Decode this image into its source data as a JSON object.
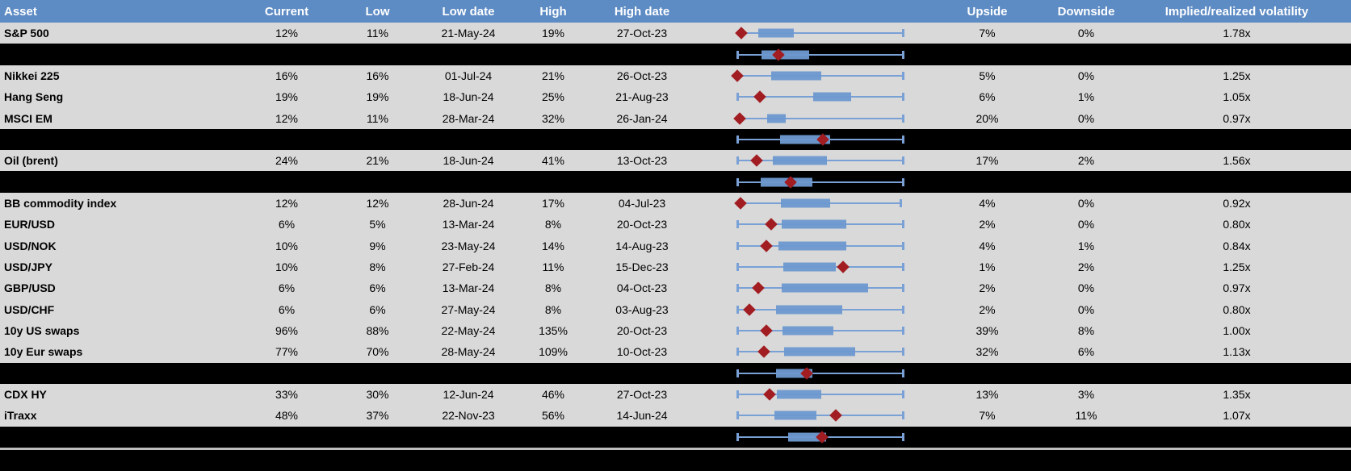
{
  "header": {
    "columns": [
      "Asset",
      "Current",
      "Low",
      "Low date",
      "High",
      "High date",
      "",
      "Upside",
      "Downside",
      "Implied/realized volatility"
    ]
  },
  "colors": {
    "header_bg": "#5d8bc4",
    "header_text": "#ffffff",
    "row_bg": "#d9d9d9",
    "summary_row_bg": "#000000",
    "box_fill": "#6d99cf",
    "whisker": "#79a1d6",
    "marker": "#a11d22",
    "divider": "#bfbfbf",
    "text": "#000000"
  },
  "chart_data": {
    "type": "table",
    "embedded_chart_type": "boxplot-with-marker",
    "boxplot_axis": {
      "min": 0,
      "max": 1,
      "units": "fraction of plot width (no axis labels shown)"
    },
    "rows": [
      {
        "type": "data",
        "asset": "S&P 500",
        "current": "12%",
        "low": "11%",
        "low_date": "21-May-24",
        "high": "19%",
        "high_date": "27-Oct-23",
        "upside": "7%",
        "downside": "0%",
        "implied_realized": "1.78x",
        "box": {
          "lo": 0.024,
          "q1": 0.127,
          "q3": 0.341,
          "hi": 1,
          "marker": 0.024,
          "left_cap": false
        }
      },
      {
        "type": "summary",
        "box": {
          "lo": 0,
          "q1": 0.146,
          "q3": 0.434,
          "hi": 1,
          "marker": 0.25,
          "left_cap": true
        }
      },
      {
        "type": "data",
        "asset": "Nikkei 225",
        "current": "16%",
        "low": "16%",
        "low_date": "01-Jul-24",
        "high": "21%",
        "high_date": "26-Oct-23",
        "upside": "5%",
        "downside": "0%",
        "implied_realized": "1.25x",
        "box": {
          "lo": 0,
          "q1": 0.205,
          "q3": 0.507,
          "hi": 1,
          "marker": 0,
          "left_cap": false
        }
      },
      {
        "type": "data",
        "asset": "Hang Seng",
        "current": "19%",
        "low": "19%",
        "low_date": "18-Jun-24",
        "high": "25%",
        "high_date": "21-Aug-23",
        "upside": "6%",
        "downside": "1%",
        "implied_realized": "1.05x",
        "box": {
          "lo": 0,
          "q1": 0.459,
          "q3": 0.688,
          "hi": 1,
          "marker": 0.137,
          "left_cap": true
        }
      },
      {
        "type": "data",
        "asset": "MSCI EM",
        "current": "12%",
        "low": "11%",
        "low_date": "28-Mar-24",
        "high": "32%",
        "high_date": "26-Jan-24",
        "upside": "20%",
        "downside": "0%",
        "implied_realized": "0.97x",
        "box": {
          "lo": 0.015,
          "q1": 0.18,
          "q3": 0.293,
          "hi": 1,
          "marker": 0.015,
          "left_cap": false
        }
      },
      {
        "type": "summary",
        "box": {
          "lo": 0,
          "q1": 0.259,
          "q3": 0.561,
          "hi": 1,
          "marker": 0.517,
          "left_cap": true
        }
      },
      {
        "type": "data",
        "asset": "Oil (brent)",
        "current": "24%",
        "low": "21%",
        "low_date": "18-Jun-24",
        "high": "41%",
        "high_date": "13-Oct-23",
        "upside": "17%",
        "downside": "2%",
        "implied_realized": "1.56x",
        "box": {
          "lo": 0,
          "q1": 0.215,
          "q3": 0.541,
          "hi": 1,
          "marker": 0.117,
          "left_cap": true
        }
      },
      {
        "type": "summary",
        "box": {
          "lo": 0,
          "q1": 0.141,
          "q3": 0.454,
          "hi": 1,
          "marker": 0.322,
          "left_cap": true
        }
      },
      {
        "type": "data",
        "asset": "BB commodity index",
        "current": "12%",
        "low": "12%",
        "low_date": "28-Jun-24",
        "high": "17%",
        "high_date": "04-Jul-23",
        "upside": "4%",
        "downside": "0%",
        "implied_realized": "0.92x",
        "box": {
          "lo": 0.02,
          "q1": 0.263,
          "q3": 0.561,
          "hi": 0.99,
          "marker": 0.02,
          "left_cap": false
        }
      },
      {
        "type": "data",
        "asset": "EUR/USD",
        "current": "6%",
        "low": "5%",
        "low_date": "13-Mar-24",
        "high": "8%",
        "high_date": "20-Oct-23",
        "upside": "2%",
        "downside": "0%",
        "implied_realized": "0.80x",
        "box": {
          "lo": 0,
          "q1": 0.268,
          "q3": 0.659,
          "hi": 1,
          "marker": 0.205,
          "left_cap": true
        }
      },
      {
        "type": "data",
        "asset": "USD/NOK",
        "current": "10%",
        "low": "9%",
        "low_date": "23-May-24",
        "high": "14%",
        "high_date": "14-Aug-23",
        "upside": "4%",
        "downside": "1%",
        "implied_realized": "0.84x",
        "box": {
          "lo": 0,
          "q1": 0.249,
          "q3": 0.659,
          "hi": 1,
          "marker": 0.176,
          "left_cap": true
        }
      },
      {
        "type": "data",
        "asset": "USD/JPY",
        "current": "10%",
        "low": "8%",
        "low_date": "27-Feb-24",
        "high": "11%",
        "high_date": "15-Dec-23",
        "upside": "1%",
        "downside": "2%",
        "implied_realized": "1.25x",
        "box": {
          "lo": 0,
          "q1": 0.278,
          "q3": 0.595,
          "hi": 1,
          "marker": 0.639,
          "left_cap": true
        }
      },
      {
        "type": "data",
        "asset": "GBP/USD",
        "current": "6%",
        "low": "6%",
        "low_date": "13-Mar-24",
        "high": "8%",
        "high_date": "04-Oct-23",
        "upside": "2%",
        "downside": "0%",
        "implied_realized": "0.97x",
        "box": {
          "lo": 0,
          "q1": 0.268,
          "q3": 0.79,
          "hi": 1,
          "marker": 0.127,
          "left_cap": true
        }
      },
      {
        "type": "data",
        "asset": "USD/CHF",
        "current": "6%",
        "low": "6%",
        "low_date": "27-May-24",
        "high": "8%",
        "high_date": "03-Aug-23",
        "upside": "2%",
        "downside": "0%",
        "implied_realized": "0.80x",
        "box": {
          "lo": 0,
          "q1": 0.234,
          "q3": 0.634,
          "hi": 1,
          "marker": 0.073,
          "left_cap": true
        }
      },
      {
        "type": "data",
        "asset": "10y US swaps",
        "current": "96%",
        "low": "88%",
        "low_date": "22-May-24",
        "high": "135%",
        "high_date": "20-Oct-23",
        "upside": "39%",
        "downside": "8%",
        "implied_realized": "1.00x",
        "box": {
          "lo": 0,
          "q1": 0.273,
          "q3": 0.58,
          "hi": 1,
          "marker": 0.176,
          "left_cap": true
        }
      },
      {
        "type": "data",
        "asset": "10y Eur swaps",
        "current": "77%",
        "low": "70%",
        "low_date": "28-May-24",
        "high": "109%",
        "high_date": "10-Oct-23",
        "upside": "32%",
        "downside": "6%",
        "implied_realized": "1.13x",
        "box": {
          "lo": 0,
          "q1": 0.283,
          "q3": 0.712,
          "hi": 1,
          "marker": 0.161,
          "left_cap": true
        }
      },
      {
        "type": "summary",
        "box": {
          "lo": 0,
          "q1": 0.234,
          "q3": 0.454,
          "hi": 1,
          "marker": 0.42,
          "left_cap": true
        }
      },
      {
        "type": "data",
        "asset": "CDX HY",
        "current": "33%",
        "low": "30%",
        "low_date": "12-Jun-24",
        "high": "46%",
        "high_date": "27-Oct-23",
        "upside": "13%",
        "downside": "3%",
        "implied_realized": "1.35x",
        "box": {
          "lo": 0,
          "q1": 0.239,
          "q3": 0.507,
          "hi": 1,
          "marker": 0.195,
          "left_cap": true
        }
      },
      {
        "type": "data",
        "asset": "iTraxx",
        "current": "48%",
        "low": "37%",
        "low_date": "22-Nov-23",
        "high": "56%",
        "high_date": "14-Jun-24",
        "upside": "7%",
        "downside": "11%",
        "implied_realized": "1.07x",
        "box": {
          "lo": 0,
          "q1": 0.224,
          "q3": 0.478,
          "hi": 1,
          "marker": 0.595,
          "left_cap": true
        }
      },
      {
        "type": "summary",
        "box": {
          "lo": 0,
          "q1": 0.307,
          "q3": 0.537,
          "hi": 1,
          "marker": 0.512,
          "left_cap": true
        }
      },
      {
        "type": "divider"
      },
      {
        "type": "footer"
      }
    ]
  }
}
